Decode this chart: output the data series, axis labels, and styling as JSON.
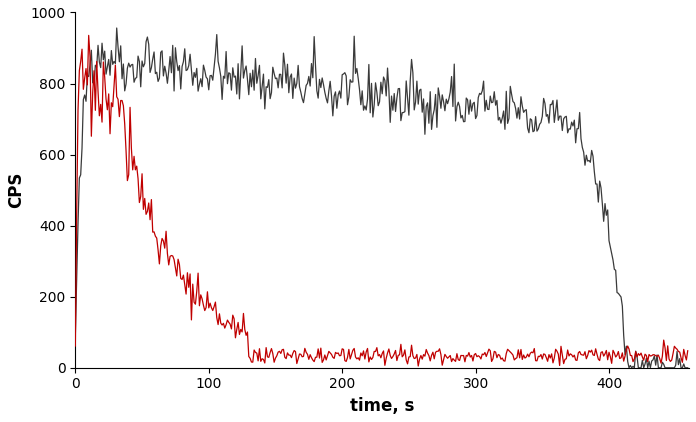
{
  "title": "",
  "xlabel": "time, s",
  "ylabel": "CPS",
  "xlim": [
    0,
    460
  ],
  "ylim": [
    0,
    1000
  ],
  "xticks": [
    0,
    100,
    200,
    300,
    400
  ],
  "yticks": [
    0,
    200,
    400,
    600,
    800,
    1000
  ],
  "black_color": "#3a3a3a",
  "red_color": "#c00000",
  "linewidth": 0.9,
  "xlabel_fontsize": 12,
  "ylabel_fontsize": 12,
  "xlabel_fontweight": "bold",
  "ylabel_fontweight": "bold",
  "tick_fontsize": 10,
  "background_color": "#ffffff",
  "seed_black": 42,
  "seed_red": 17
}
